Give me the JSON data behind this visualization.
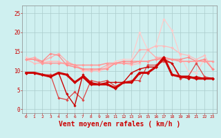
{
  "bg_color": "#cff0f0",
  "grid_color": "#aacccc",
  "xlabel": "Vent moyen/en rafales ( km/h )",
  "xlabel_color": "#cc0000",
  "xlabel_fontsize": 7,
  "xticks": [
    0,
    1,
    2,
    3,
    4,
    5,
    6,
    7,
    8,
    9,
    10,
    11,
    12,
    13,
    14,
    15,
    16,
    17,
    18,
    19,
    20,
    21,
    22,
    23
  ],
  "yticks": [
    0,
    5,
    10,
    15,
    20,
    25
  ],
  "ylim": [
    -1,
    27
  ],
  "xlim": [
    -0.5,
    23.5
  ],
  "series": [
    {
      "y": [
        13.5,
        13.0,
        12.5,
        12.5,
        12.5,
        11.5,
        11.5,
        10.0,
        10.0,
        10.0,
        10.5,
        12.5,
        13.0,
        13.0,
        20.0,
        15.5,
        16.5,
        23.5,
        20.5,
        14.0,
        10.0,
        9.5,
        13.0,
        10.5
      ],
      "color": "#ffcccc",
      "lw": 0.9,
      "marker": "D",
      "ms": 1.8,
      "zorder": 1
    },
    {
      "y": [
        13.0,
        12.0,
        12.0,
        12.5,
        12.5,
        11.5,
        11.5,
        10.0,
        10.5,
        10.0,
        11.0,
        12.0,
        12.0,
        11.5,
        12.0,
        15.5,
        16.5,
        16.5,
        16.0,
        14.5,
        14.0,
        13.0,
        14.0,
        10.5
      ],
      "color": "#ffbbbb",
      "lw": 0.9,
      "marker": "D",
      "ms": 1.8,
      "zorder": 2
    },
    {
      "y": [
        13.0,
        13.5,
        12.5,
        13.5,
        14.5,
        12.5,
        11.5,
        10.5,
        10.0,
        10.5,
        11.5,
        12.0,
        12.5,
        12.5,
        15.5,
        15.5,
        13.5,
        13.5,
        13.0,
        12.5,
        12.5,
        12.5,
        13.0,
        10.5
      ],
      "color": "#ffaaaa",
      "lw": 0.9,
      "marker": "D",
      "ms": 1.8,
      "zorder": 3
    },
    {
      "y": [
        13.0,
        13.0,
        12.5,
        14.5,
        14.0,
        11.5,
        11.0,
        10.5,
        10.5,
        10.5,
        10.5,
        12.0,
        12.5,
        12.5,
        12.5,
        12.5,
        13.0,
        13.0,
        13.0,
        13.0,
        13.5,
        12.5,
        13.0,
        10.5
      ],
      "color": "#ff8888",
      "lw": 0.9,
      "marker": "D",
      "ms": 1.8,
      "zorder": 4
    },
    {
      "y": [
        13.0,
        13.0,
        12.0,
        12.0,
        12.0,
        12.0,
        11.5,
        11.5,
        11.5,
        11.5,
        12.0,
        12.0,
        12.0,
        12.0,
        12.5,
        12.5,
        13.0,
        13.5,
        13.0,
        12.5,
        12.5,
        12.5,
        12.5,
        12.5
      ],
      "color": "#ff9999",
      "lw": 1.2,
      "marker": "D",
      "ms": 1.8,
      "zorder": 5
    },
    {
      "y": [
        9.5,
        9.5,
        9.0,
        9.0,
        3.0,
        2.5,
        4.5,
        2.5,
        7.5,
        7.0,
        7.5,
        6.0,
        7.0,
        7.5,
        7.5,
        11.5,
        11.5,
        12.5,
        12.0,
        8.0,
        8.5,
        12.0,
        8.5,
        8.0
      ],
      "color": "#dd4444",
      "lw": 0.9,
      "marker": "D",
      "ms": 1.8,
      "zorder": 6
    },
    {
      "y": [
        9.5,
        9.5,
        9.0,
        8.5,
        9.5,
        4.0,
        1.0,
        9.0,
        7.0,
        6.5,
        7.0,
        7.0,
        7.0,
        9.5,
        10.5,
        11.0,
        11.0,
        13.0,
        12.0,
        8.5,
        8.0,
        8.5,
        8.0,
        8.0
      ],
      "color": "#cc0000",
      "lw": 1.0,
      "marker": "D",
      "ms": 1.8,
      "zorder": 7
    },
    {
      "y": [
        9.5,
        9.5,
        9.0,
        8.5,
        9.5,
        9.0,
        7.0,
        8.5,
        6.5,
        6.5,
        6.5,
        5.5,
        7.0,
        7.0,
        9.5,
        9.5,
        11.0,
        13.5,
        9.0,
        8.5,
        8.5,
        8.0,
        8.0,
        8.0
      ],
      "color": "#cc0000",
      "lw": 2.2,
      "marker": "D",
      "ms": 2.2,
      "zorder": 8
    }
  ]
}
